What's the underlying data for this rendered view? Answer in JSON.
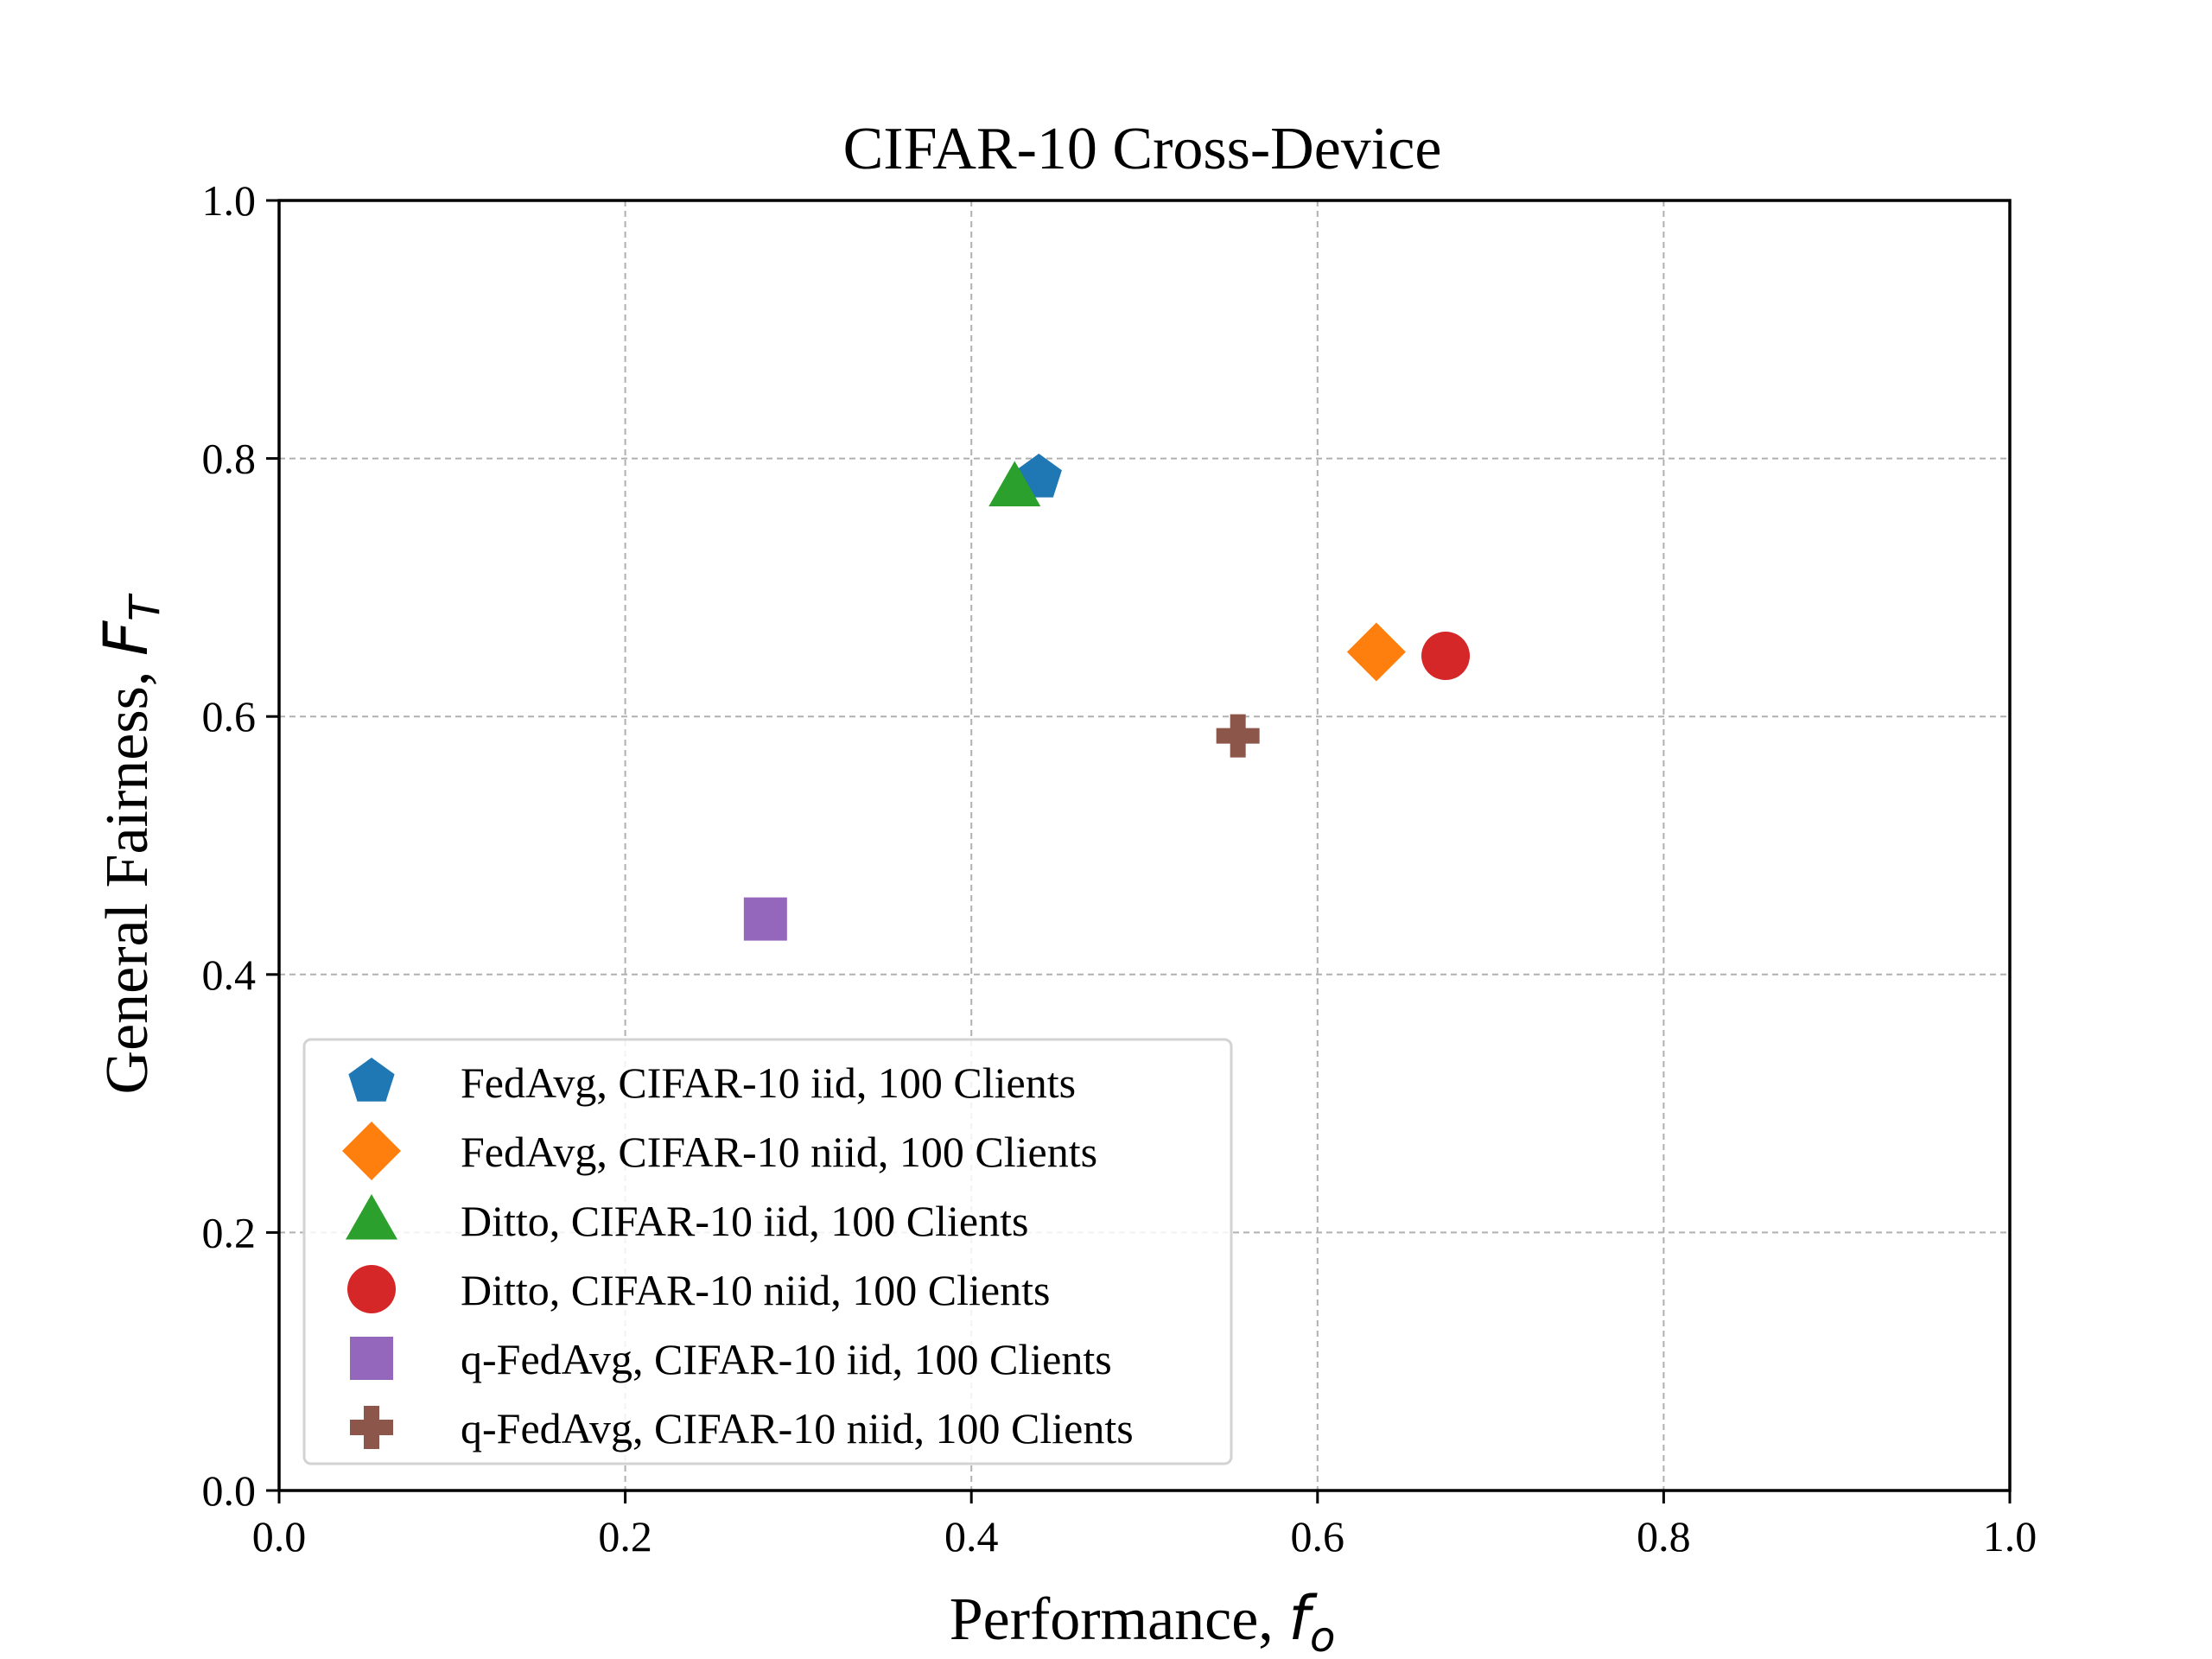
{
  "chart_data": {
    "type": "scatter",
    "title": "CIFAR-10 Cross-Device",
    "xlabel": "Performance, ",
    "xlabel_symbol": "f",
    "xlabel_sub": "o",
    "ylabel": "General Fairness, ",
    "ylabel_symbol": "F",
    "ylabel_sub": "T",
    "xlim": [
      0.0,
      1.0
    ],
    "ylim": [
      0.0,
      1.0
    ],
    "xticks": [
      "0.0",
      "0.2",
      "0.4",
      "0.6",
      "0.8",
      "1.0"
    ],
    "yticks": [
      "0.0",
      "0.2",
      "0.4",
      "0.6",
      "0.8",
      "1.0"
    ],
    "grid": true,
    "legend_position": "lower-left",
    "series": [
      {
        "name": "FedAvg, CIFAR-10 iid, 100 Clients",
        "marker": "pentagon",
        "color": "#1f77b4",
        "x": [
          0.439
        ],
        "y": [
          0.785
        ]
      },
      {
        "name": "FedAvg, CIFAR-10 niid, 100 Clients",
        "marker": "diamond",
        "color": "#ff7f0e",
        "x": [
          0.634
        ],
        "y": [
          0.65
        ]
      },
      {
        "name": "Ditto, CIFAR-10 iid, 100 Clients",
        "marker": "triangle",
        "color": "#2ca02c",
        "x": [
          0.425
        ],
        "y": [
          0.778
        ]
      },
      {
        "name": "Ditto, CIFAR-10 niid, 100 Clients",
        "marker": "circle",
        "color": "#d62728",
        "x": [
          0.674
        ],
        "y": [
          0.647
        ]
      },
      {
        "name": "q-FedAvg, CIFAR-10 iid, 100 Clients",
        "marker": "square",
        "color": "#9467bd",
        "x": [
          0.281
        ],
        "y": [
          0.443
        ]
      },
      {
        "name": "q-FedAvg, CIFAR-10 niid, 100 Clients",
        "marker": "plus",
        "color": "#8c564b",
        "x": [
          0.554
        ],
        "y": [
          0.585
        ]
      }
    ]
  }
}
